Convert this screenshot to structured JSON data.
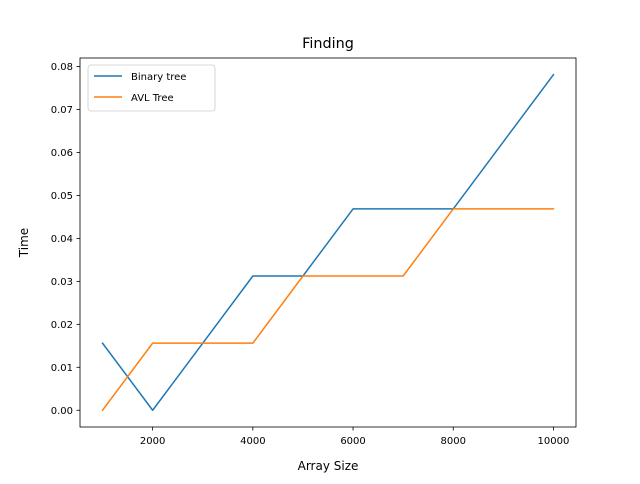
{
  "chart_data": {
    "type": "line",
    "title": "Finding",
    "xlabel": "Array Size",
    "ylabel": "Time",
    "x": [
      1000,
      2000,
      3000,
      4000,
      5000,
      6000,
      7000,
      8000,
      9000,
      10000
    ],
    "xlim": [
      550,
      10450
    ],
    "ylim": [
      -0.0039,
      0.082
    ],
    "xticks": [
      2000,
      4000,
      6000,
      8000,
      10000
    ],
    "xtick_labels": [
      "2000",
      "4000",
      "6000",
      "8000",
      "10000"
    ],
    "yticks": [
      0.0,
      0.01,
      0.02,
      0.03,
      0.04,
      0.05,
      0.06,
      0.07,
      0.08
    ],
    "ytick_labels": [
      "0.00",
      "0.01",
      "0.02",
      "0.03",
      "0.04",
      "0.05",
      "0.06",
      "0.07",
      "0.08"
    ],
    "grid": false,
    "legend_position": "upper-left",
    "series": [
      {
        "name": "Binary tree",
        "color": "#1f77b4",
        "values": [
          0.0156,
          0.0,
          0.0156,
          0.03125,
          0.03125,
          0.046875,
          0.046875,
          0.046875,
          0.0625,
          0.078125
        ]
      },
      {
        "name": "AVL Tree",
        "color": "#ff7f0e",
        "values": [
          0.0,
          0.015625,
          0.015625,
          0.015625,
          0.03125,
          0.03125,
          0.03125,
          0.046875,
          0.046875,
          0.046875
        ]
      }
    ]
  }
}
